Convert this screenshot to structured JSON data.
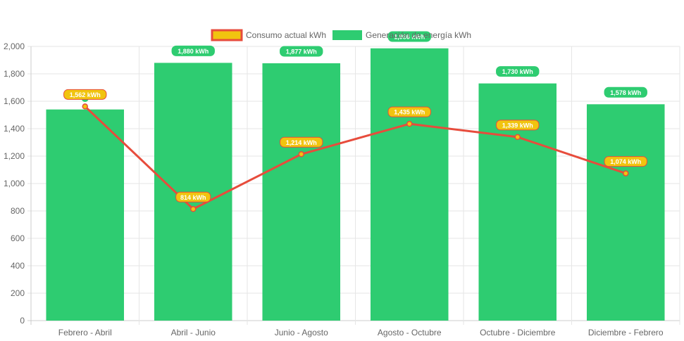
{
  "chart_data": {
    "type": "bar",
    "categories": [
      "Febrero - Abril",
      "Abril - Junio",
      "Junio - Agosto",
      "Agosto - Octubre",
      "Octubre - Diciembre",
      "Diciembre - Febrero"
    ],
    "series": [
      {
        "name": "Consumo actual kWh",
        "type": "line",
        "values": [
          1562,
          814,
          1214,
          1435,
          1339,
          1074
        ],
        "labels": [
          "1,562 kWh",
          "814 kWh",
          "1,214 kWh",
          "1,435 kWh",
          "1,339 kWh",
          "1,074 kWh"
        ],
        "color": "#e74c3c",
        "fill_color": "#f1c40f"
      },
      {
        "name": "Generación de energía kWh",
        "type": "bar",
        "values": [
          1540,
          1880,
          1877,
          1986,
          1730,
          1578
        ],
        "labels": [
          "",
          "1,880 kWh",
          "1,877 kWh",
          "1,986 kWh",
          "1,730 kWh",
          "1,578 kWh"
        ],
        "color": "#2ecc71"
      }
    ],
    "y_ticks": [
      "0",
      "200",
      "400",
      "600",
      "800",
      "1,000",
      "1,200",
      "1,400",
      "1,600",
      "1,800",
      "2,000"
    ],
    "ylim": [
      0,
      2000
    ],
    "grid": true,
    "legend_position": "top"
  },
  "legend": {
    "consumo": "Consumo actual kWh",
    "generacion": "Generación de energía kWh"
  }
}
